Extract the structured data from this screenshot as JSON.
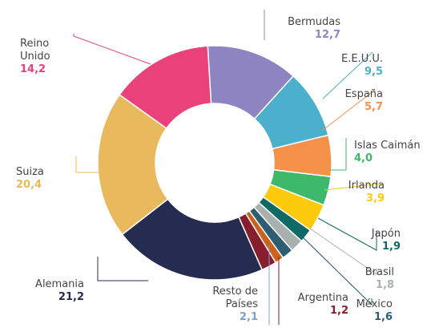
{
  "chart_data": {
    "type": "donut",
    "categories": [
      "Bermudas",
      "E.E.U.U.",
      "España",
      "Islas Caimán",
      "Irlanda",
      "Japón",
      "Brasil",
      "México",
      "Argentina",
      "Resto de Países",
      "Alemania",
      "Suiza",
      "Reino Unido"
    ],
    "values": [
      12.7,
      9.5,
      5.7,
      4.0,
      3.9,
      1.9,
      1.8,
      1.6,
      1.2,
      2.1,
      21.2,
      20.4,
      14.2
    ],
    "value_labels": [
      "12,7",
      "9,5",
      "5,7",
      "4,0",
      "3,9",
      "1,9",
      "1,8",
      "1,6",
      "1,2",
      "2,1",
      "21,2",
      "20,4",
      "14,2"
    ],
    "colors": [
      "#8f84c2",
      "#4ab0cc",
      "#f39149",
      "#3eb86a",
      "#fccb0b",
      "#0f6a66",
      "#a9b1ae",
      "#2c5d72",
      "#c8621c",
      "#871d2d",
      "#252c50",
      "#e8ba5d",
      "#e9417a"
    ],
    "label_colors": [
      "#8f84c2",
      "#4ab0cc",
      "#f39149",
      "#3eb86a",
      "#fccb0b",
      "#0f6a66",
      "#a9b1ae",
      "#2c5d72",
      "#871d2d",
      "#7f9fcc",
      "#252c50",
      "#e8ba5d",
      "#e9417a"
    ]
  }
}
